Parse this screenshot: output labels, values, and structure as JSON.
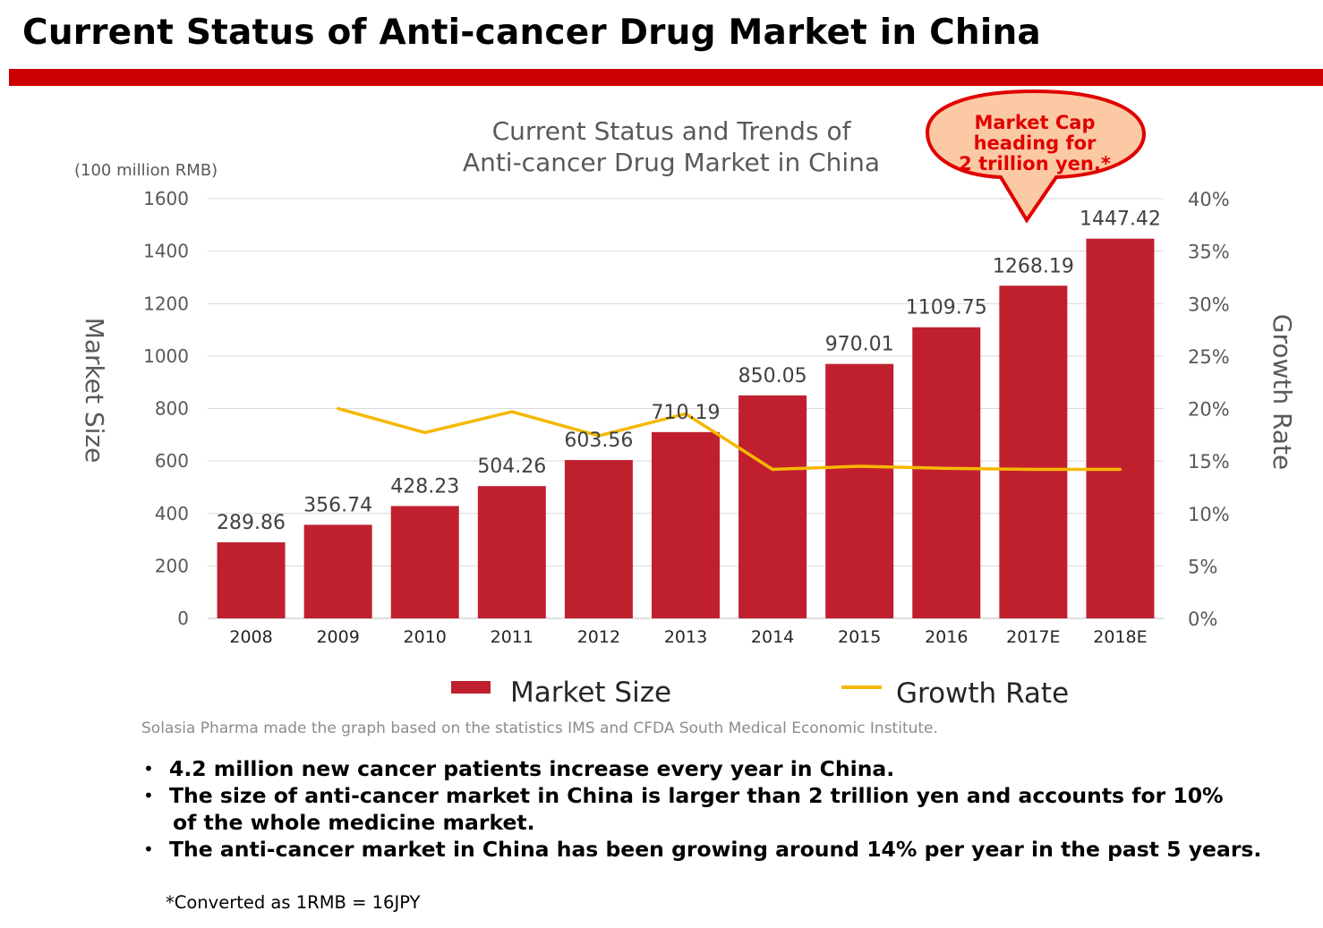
{
  "page": {
    "title": "Current Status of Anti-cancer Drug Market in China",
    "rule_color": "#cc0000"
  },
  "callout": {
    "lines": [
      "Market Cap",
      "heading for",
      "2 trillion yen.*"
    ],
    "fill": "#fbc9a3",
    "stroke": "#e00000",
    "text_color": "#e00000"
  },
  "chart_data": {
    "type": "bar",
    "title_lines": [
      "Current Status and Trends of",
      "Anti-cancer Drug Market in China"
    ],
    "unit_note": "(100 million RMB)",
    "ylabel": "Market Size",
    "y2label": "Growth Rate",
    "categories": [
      "2008",
      "2009",
      "2010",
      "2011",
      "2012",
      "2013",
      "2014",
      "2015",
      "2016",
      "2017E",
      "2018E"
    ],
    "ylim": [
      0,
      1600
    ],
    "yticks": [
      "0",
      "200",
      "400",
      "600",
      "800",
      "1000",
      "1200",
      "1400",
      "1600"
    ],
    "y2lim": [
      0,
      40
    ],
    "y2ticks": [
      "0%",
      "5%",
      "10%",
      "15%",
      "20%",
      "25%",
      "30%",
      "35%",
      "40%"
    ],
    "grid": true,
    "series": [
      {
        "name": "Market Size",
        "type": "bar",
        "color": "#c0202e",
        "values": [
          289.86,
          356.74,
          428.23,
          504.26,
          603.56,
          710.19,
          850.05,
          970.01,
          1109.75,
          1268.19,
          1447.42
        ],
        "labels": [
          "289.86",
          "356.74",
          "428.23",
          "504.26",
          "603.56",
          "710.19",
          "850.05",
          "970.01",
          "1109.75",
          "1268.19",
          "1447.42"
        ]
      },
      {
        "name": "Growth Rate",
        "type": "line",
        "axis": "right",
        "color": "#f5b800",
        "values": [
          null,
          20.0,
          17.7,
          19.7,
          17.4,
          19.5,
          14.2,
          14.5,
          14.3,
          14.2,
          14.2
        ]
      }
    ],
    "legend_placement": "bottom"
  },
  "source_note": "Solasia Pharma made the graph based on the statistics IMS and CFDA South Medical Economic Institute.",
  "bullets": [
    {
      "line1": "4.2 million new cancer patients increase every year in China.",
      "line2": ""
    },
    {
      "line1": "The size of anti-cancer market in China is larger than 2 trillion yen and accounts for 10%",
      "line2": "of the whole medicine market."
    },
    {
      "line1": "The anti-cancer market in China has been growing around 14% per year in the past 5 years.",
      "line2": ""
    }
  ],
  "footnote": "*Converted as 1RMB = 16JPY"
}
